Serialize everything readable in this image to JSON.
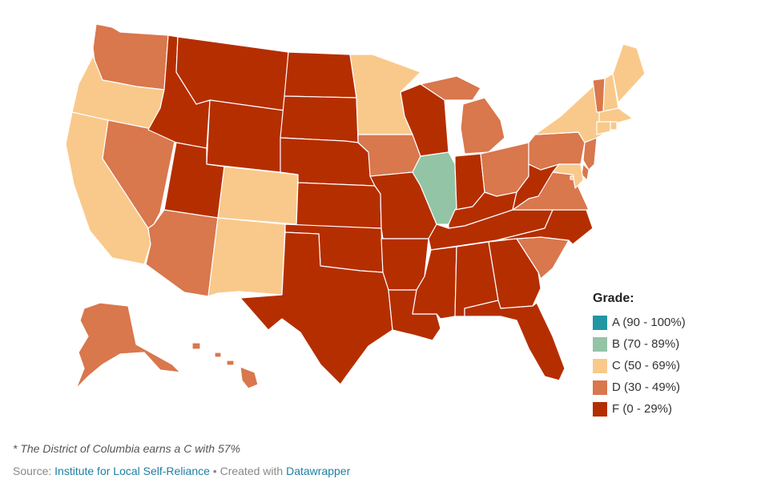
{
  "legend": {
    "title": "Grade:",
    "items": [
      {
        "grade": "A",
        "label": "A (90 - 100%)",
        "color": "#2196a3"
      },
      {
        "grade": "B",
        "label": "B (70 - 89%)",
        "color": "#93c4a6"
      },
      {
        "grade": "C",
        "label": "C (50 - 69%)",
        "color": "#f9c98b"
      },
      {
        "grade": "D",
        "label": "D (30 - 49%)",
        "color": "#d9774d"
      },
      {
        "grade": "F",
        "label": "F (0 - 29%)",
        "color": "#b52e00"
      }
    ]
  },
  "footnote": "* The District of Columbia earns a C with 57%",
  "source": {
    "prefix": "Source: ",
    "link_text": "Institute for Local Self-Reliance",
    "separator": " • Created with ",
    "tool_text": "Datawrapper"
  },
  "states": {
    "WA": "D",
    "OR": "C",
    "CA": "C",
    "NV": "D",
    "ID": "F",
    "MT": "F",
    "WY": "F",
    "UT": "F",
    "AZ": "D",
    "CO": "C",
    "NM": "C",
    "ND": "F",
    "SD": "F",
    "NE": "F",
    "KS": "F",
    "OK": "F",
    "TX": "F",
    "MN": "C",
    "IA": "D",
    "MO": "F",
    "AR": "F",
    "LA": "F",
    "WI": "F",
    "IL": "B",
    "MI": "D",
    "IN": "F",
    "OH": "D",
    "KY": "F",
    "TN": "F",
    "MS": "F",
    "AL": "F",
    "GA": "F",
    "FL": "F",
    "SC": "D",
    "NC": "F",
    "VA": "D",
    "WV": "F",
    "PA": "D",
    "NY": "C",
    "VT": "D",
    "NH": "C",
    "ME": "C",
    "MA": "C",
    "RI": "C",
    "CT": "C",
    "NJ": "D",
    "DE": "D",
    "MD": "C",
    "DC": "C",
    "AK": "D",
    "HI": "D"
  }
}
